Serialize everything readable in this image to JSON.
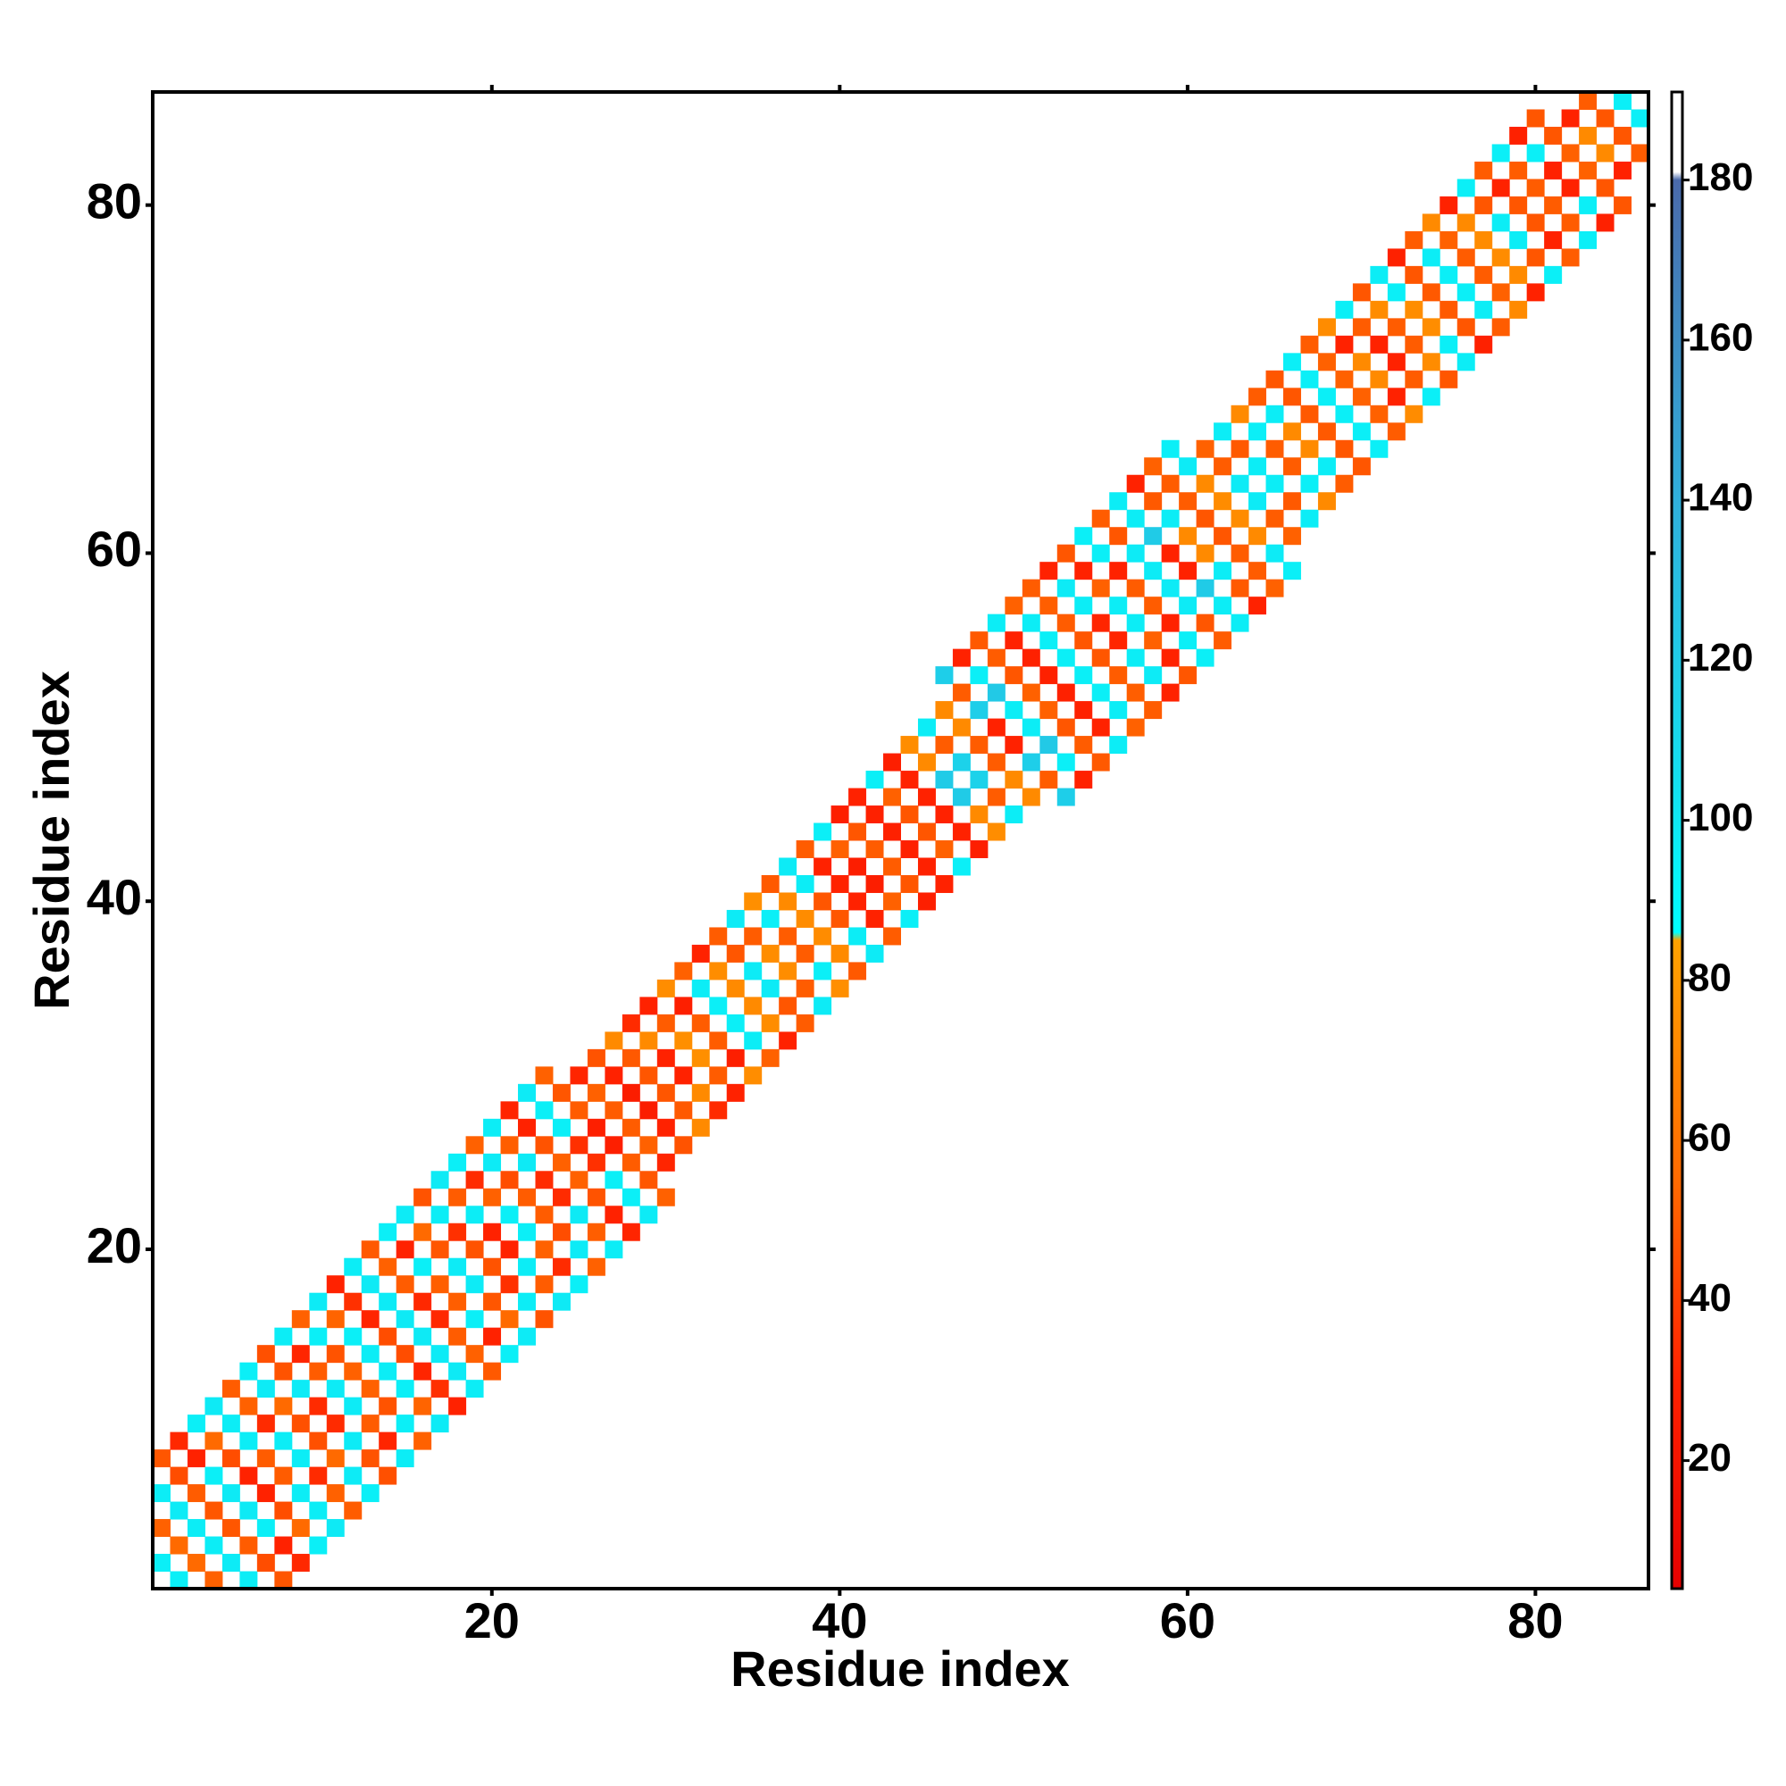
{
  "chart_data": {
    "type": "heatmap",
    "xlabel": "Residue index",
    "ylabel": "Residue index",
    "xlim": [
      0.5,
      86.5
    ],
    "ylim": [
      0.5,
      86.5
    ],
    "xticks": [
      20,
      40,
      60,
      80
    ],
    "yticks": [
      20,
      40,
      60,
      80
    ],
    "zlim": [
      4,
      191
    ],
    "zticks": [
      20,
      40,
      60,
      80,
      100,
      120,
      140,
      160,
      180
    ],
    "symmetric": true,
    "colorscale": [
      [
        4,
        "#e60000"
      ],
      [
        30,
        "#ff2200"
      ],
      [
        55,
        "#ff6a00"
      ],
      [
        85,
        "#ffa200"
      ],
      [
        86,
        "#00ffff"
      ],
      [
        105,
        "#14e0f0"
      ],
      [
        140,
        "#30b0dc"
      ],
      [
        180,
        "#4a6aac"
      ],
      [
        181,
        "#ffffff"
      ],
      [
        191,
        "#ffffff"
      ]
    ],
    "cells": [
      [
        1,
        2,
        96
      ],
      [
        1,
        4,
        52
      ],
      [
        1,
        6,
        97
      ],
      [
        1,
        8,
        48
      ],
      [
        2,
        3,
        55
      ],
      [
        2,
        5,
        98
      ],
      [
        2,
        7,
        45
      ],
      [
        2,
        9,
        32
      ],
      [
        3,
        4,
        97
      ],
      [
        3,
        6,
        50
      ],
      [
        3,
        8,
        30
      ],
      [
        3,
        10,
        96
      ],
      [
        4,
        5,
        48
      ],
      [
        4,
        7,
        96
      ],
      [
        4,
        9,
        55
      ],
      [
        4,
        11,
        99
      ],
      [
        5,
        6,
        99
      ],
      [
        5,
        8,
        45
      ],
      [
        5,
        10,
        97
      ],
      [
        5,
        12,
        50
      ],
      [
        6,
        7,
        30
      ],
      [
        6,
        9,
        97
      ],
      [
        6,
        11,
        52
      ],
      [
        6,
        13,
        96
      ],
      [
        7,
        8,
        50
      ],
      [
        7,
        10,
        33
      ],
      [
        7,
        12,
        98
      ],
      [
        7,
        14,
        46
      ],
      [
        8,
        9,
        97
      ],
      [
        8,
        11,
        55
      ],
      [
        8,
        13,
        47
      ],
      [
        8,
        15,
        97
      ],
      [
        9,
        10,
        46
      ],
      [
        9,
        12,
        98
      ],
      [
        9,
        14,
        31
      ],
      [
        9,
        16,
        52
      ],
      [
        10,
        11,
        33
      ],
      [
        10,
        13,
        50
      ],
      [
        10,
        15,
        96
      ],
      [
        10,
        17,
        98
      ],
      [
        11,
        12,
        98
      ],
      [
        11,
        14,
        47
      ],
      [
        11,
        16,
        53
      ],
      [
        11,
        18,
        30
      ],
      [
        12,
        13,
        52
      ],
      [
        12,
        15,
        96
      ],
      [
        12,
        17,
        35
      ],
      [
        12,
        19,
        97
      ],
      [
        13,
        14,
        97
      ],
      [
        13,
        16,
        31
      ],
      [
        13,
        18,
        99
      ],
      [
        13,
        20,
        49
      ],
      [
        14,
        15,
        45
      ],
      [
        14,
        17,
        98
      ],
      [
        14,
        19,
        52
      ],
      [
        14,
        21,
        96
      ],
      [
        15,
        16,
        99
      ],
      [
        15,
        18,
        50
      ],
      [
        15,
        20,
        30
      ],
      [
        15,
        22,
        98
      ],
      [
        16,
        17,
        32
      ],
      [
        16,
        19,
        96
      ],
      [
        16,
        21,
        55
      ],
      [
        16,
        23,
        47
      ],
      [
        17,
        18,
        51
      ],
      [
        17,
        20,
        48
      ],
      [
        17,
        22,
        97
      ],
      [
        17,
        24,
        99
      ],
      [
        18,
        19,
        98
      ],
      [
        18,
        21,
        35
      ],
      [
        18,
        23,
        50
      ],
      [
        18,
        25,
        96
      ],
      [
        19,
        20,
        47
      ],
      [
        19,
        22,
        97
      ],
      [
        19,
        24,
        33
      ],
      [
        19,
        26,
        52
      ],
      [
        20,
        21,
        30
      ],
      [
        20,
        23,
        52
      ],
      [
        20,
        25,
        98
      ],
      [
        20,
        27,
        97
      ],
      [
        21,
        22,
        96
      ],
      [
        21,
        24,
        45
      ],
      [
        21,
        26,
        51
      ],
      [
        21,
        28,
        31
      ],
      [
        22,
        23,
        50
      ],
      [
        22,
        25,
        99
      ],
      [
        22,
        27,
        30
      ],
      [
        22,
        29,
        98
      ],
      [
        23,
        24,
        33
      ],
      [
        23,
        26,
        47
      ],
      [
        23,
        28,
        96
      ],
      [
        23,
        30,
        52
      ],
      [
        24,
        25,
        52
      ],
      [
        24,
        27,
        96
      ],
      [
        24,
        29,
        48
      ],
      [
        25,
        26,
        35
      ],
      [
        25,
        28,
        50
      ],
      [
        25,
        30,
        31
      ],
      [
        26,
        27,
        28
      ],
      [
        26,
        29,
        52
      ],
      [
        26,
        31,
        47
      ],
      [
        27,
        28,
        50
      ],
      [
        27,
        30,
        30
      ],
      [
        27,
        32,
        72
      ],
      [
        28,
        29,
        26
      ],
      [
        28,
        31,
        49
      ],
      [
        28,
        33,
        33
      ],
      [
        29,
        30,
        48
      ],
      [
        29,
        32,
        72
      ],
      [
        29,
        34,
        30
      ],
      [
        30,
        31,
        30
      ],
      [
        30,
        33,
        50
      ],
      [
        30,
        35,
        74
      ],
      [
        31,
        32,
        75
      ],
      [
        31,
        34,
        28
      ],
      [
        31,
        36,
        52
      ],
      [
        32,
        33,
        50
      ],
      [
        32,
        35,
        97
      ],
      [
        32,
        37,
        30
      ],
      [
        33,
        34,
        96
      ],
      [
        33,
        36,
        74
      ],
      [
        33,
        38,
        50
      ],
      [
        34,
        35,
        72
      ],
      [
        34,
        37,
        48
      ],
      [
        34,
        39,
        98
      ],
      [
        35,
        36,
        98
      ],
      [
        35,
        38,
        50
      ],
      [
        35,
        40,
        75
      ],
      [
        36,
        37,
        74
      ],
      [
        36,
        39,
        96
      ],
      [
        36,
        41,
        49
      ],
      [
        37,
        38,
        50
      ],
      [
        37,
        40,
        72
      ],
      [
        37,
        42,
        98
      ],
      [
        38,
        39,
        73
      ],
      [
        38,
        41,
        97
      ],
      [
        38,
        43,
        50
      ],
      [
        39,
        40,
        48
      ],
      [
        39,
        42,
        30
      ],
      [
        39,
        44,
        96
      ],
      [
        40,
        41,
        30
      ],
      [
        40,
        43,
        52
      ],
      [
        40,
        45,
        28
      ],
      [
        41,
        42,
        27
      ],
      [
        41,
        44,
        48
      ],
      [
        41,
        46,
        30
      ],
      [
        42,
        43,
        50
      ],
      [
        42,
        45,
        29
      ],
      [
        42,
        47,
        96
      ],
      [
        43,
        44,
        29
      ],
      [
        43,
        46,
        52
      ],
      [
        43,
        48,
        28
      ],
      [
        44,
        45,
        48
      ],
      [
        44,
        47,
        30
      ],
      [
        44,
        49,
        74
      ],
      [
        45,
        46,
        30
      ],
      [
        45,
        48,
        72
      ],
      [
        45,
        50,
        97
      ],
      [
        46,
        47,
        120
      ],
      [
        46,
        49,
        50
      ],
      [
        46,
        51,
        72
      ],
      [
        46,
        53,
        118
      ],
      [
        47,
        48,
        115
      ],
      [
        47,
        50,
        72
      ],
      [
        47,
        52,
        50
      ],
      [
        47,
        54,
        30
      ],
      [
        48,
        49,
        50
      ],
      [
        48,
        51,
        118
      ],
      [
        48,
        53,
        96
      ],
      [
        48,
        55,
        49
      ],
      [
        49,
        50,
        30
      ],
      [
        49,
        52,
        122
      ],
      [
        49,
        54,
        50
      ],
      [
        49,
        56,
        97
      ],
      [
        50,
        51,
        97
      ],
      [
        50,
        53,
        48
      ],
      [
        50,
        55,
        30
      ],
      [
        50,
        57,
        52
      ],
      [
        51,
        52,
        52
      ],
      [
        51,
        54,
        29
      ],
      [
        51,
        56,
        97
      ],
      [
        51,
        58,
        50
      ],
      [
        52,
        53,
        29
      ],
      [
        52,
        55,
        96
      ],
      [
        52,
        57,
        51
      ],
      [
        52,
        59,
        30
      ],
      [
        53,
        54,
        96
      ],
      [
        53,
        56,
        50
      ],
      [
        53,
        58,
        98
      ],
      [
        53,
        60,
        48
      ],
      [
        54,
        55,
        48
      ],
      [
        54,
        57,
        97
      ],
      [
        54,
        59,
        30
      ],
      [
        54,
        61,
        96
      ],
      [
        55,
        56,
        31
      ],
      [
        55,
        58,
        52
      ],
      [
        55,
        60,
        96
      ],
      [
        55,
        62,
        50
      ],
      [
        56,
        57,
        97
      ],
      [
        56,
        59,
        30
      ],
      [
        56,
        61,
        48
      ],
      [
        56,
        63,
        97
      ],
      [
        57,
        58,
        50
      ],
      [
        57,
        60,
        98
      ],
      [
        57,
        62,
        97
      ],
      [
        57,
        64,
        30
      ],
      [
        58,
        59,
        98
      ],
      [
        58,
        61,
        120
      ],
      [
        58,
        63,
        49
      ],
      [
        58,
        65,
        52
      ],
      [
        59,
        60,
        30
      ],
      [
        59,
        62,
        97
      ],
      [
        59,
        64,
        50
      ],
      [
        59,
        66,
        96
      ],
      [
        60,
        61,
        72
      ],
      [
        60,
        63,
        50
      ],
      [
        60,
        65,
        98
      ],
      [
        61,
        62,
        48
      ],
      [
        61,
        64,
        72
      ],
      [
        61,
        66,
        52
      ],
      [
        62,
        63,
        73
      ],
      [
        62,
        65,
        50
      ],
      [
        62,
        67,
        97
      ],
      [
        63,
        64,
        98
      ],
      [
        63,
        66,
        49
      ],
      [
        63,
        68,
        72
      ],
      [
        64,
        65,
        97
      ],
      [
        64,
        67,
        96
      ],
      [
        64,
        69,
        50
      ],
      [
        65,
        66,
        50
      ],
      [
        65,
        68,
        97
      ],
      [
        65,
        70,
        48
      ],
      [
        66,
        67,
        72
      ],
      [
        66,
        69,
        48
      ],
      [
        66,
        71,
        96
      ],
      [
        67,
        68,
        49
      ],
      [
        67,
        70,
        96
      ],
      [
        67,
        72,
        50
      ],
      [
        68,
        69,
        96
      ],
      [
        68,
        71,
        52
      ],
      [
        68,
        73,
        73
      ],
      [
        69,
        70,
        52
      ],
      [
        69,
        72,
        30
      ],
      [
        69,
        74,
        96
      ],
      [
        70,
        71,
        72
      ],
      [
        70,
        73,
        50
      ],
      [
        70,
        75,
        48
      ],
      [
        71,
        72,
        30
      ],
      [
        71,
        74,
        73
      ],
      [
        71,
        76,
        97
      ],
      [
        72,
        73,
        50
      ],
      [
        72,
        75,
        96
      ],
      [
        72,
        77,
        29
      ],
      [
        73,
        74,
        74
      ],
      [
        73,
        76,
        48
      ],
      [
        73,
        78,
        50
      ],
      [
        74,
        75,
        49
      ],
      [
        74,
        77,
        97
      ],
      [
        74,
        79,
        72
      ],
      [
        75,
        76,
        96
      ],
      [
        75,
        78,
        52
      ],
      [
        75,
        80,
        30
      ],
      [
        76,
        77,
        50
      ],
      [
        76,
        79,
        72
      ],
      [
        76,
        81,
        96
      ],
      [
        77,
        78,
        73
      ],
      [
        77,
        80,
        48
      ],
      [
        77,
        82,
        50
      ],
      [
        78,
        79,
        97
      ],
      [
        78,
        81,
        30
      ],
      [
        78,
        83,
        96
      ],
      [
        79,
        80,
        48
      ],
      [
        79,
        82,
        50
      ],
      [
        79,
        84,
        29
      ],
      [
        80,
        81,
        50
      ],
      [
        80,
        83,
        96
      ],
      [
        80,
        85,
        48
      ],
      [
        81,
        82,
        30
      ],
      [
        81,
        84,
        48
      ],
      [
        82,
        83,
        52
      ],
      [
        82,
        85,
        30
      ],
      [
        83,
        84,
        72
      ],
      [
        83,
        86,
        50
      ],
      [
        84,
        85,
        48
      ],
      [
        85,
        86,
        96
      ]
    ]
  }
}
